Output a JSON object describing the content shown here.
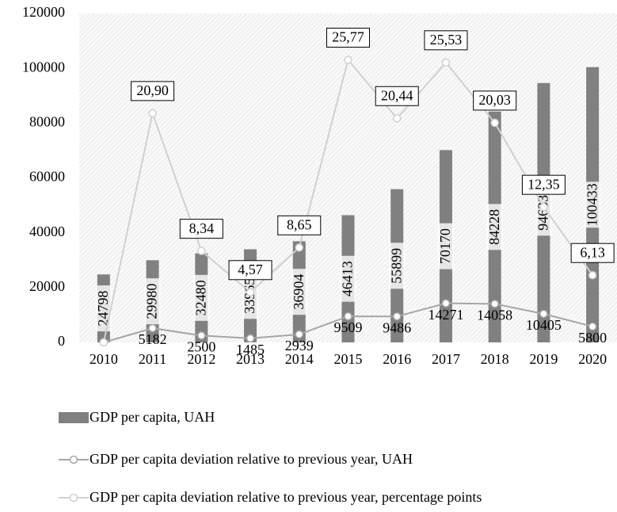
{
  "chart_data": {
    "type": "bar",
    "categories": [
      "2010",
      "2011",
      "2012",
      "2013",
      "2014",
      "2015",
      "2016",
      "2017",
      "2018",
      "2019",
      "2020"
    ],
    "series": [
      {
        "name": "GDP per capita, UAH",
        "type": "bar",
        "color": "#808080",
        "values": [
          24798,
          29980,
          32480,
          33965,
          36904,
          46413,
          55899,
          70170,
          84228,
          94633,
          100433
        ]
      },
      {
        "name": "GDP per capita deviation relative to previous year, UAH",
        "type": "line",
        "color": "#a6a6a6",
        "values": [
          0,
          5182,
          2500,
          1485,
          2939,
          9509,
          9486,
          14271,
          14058,
          10405,
          5800
        ],
        "value_labels": [
          null,
          "5182",
          "2500",
          "1485",
          "2939",
          "9509",
          "9486",
          "14271",
          "14058",
          "10405",
          "5800"
        ]
      },
      {
        "name": "GDP per capita deviation relative to previous year, percentage points",
        "type": "line",
        "axis": "y2",
        "color": "#d0d0d0",
        "values": [
          0,
          20.9,
          8.34,
          4.57,
          8.65,
          25.77,
          20.44,
          25.53,
          20.03,
          12.35,
          6.13
        ],
        "value_labels": [
          null,
          "20,90",
          "8,34",
          "4,57",
          "8,65",
          "25,77",
          "20,44",
          "25,53",
          "20,03",
          "12,35",
          "6,13"
        ]
      }
    ],
    "ylim": [
      0,
      120000
    ],
    "yticks": [
      0,
      20000,
      40000,
      60000,
      80000,
      100000,
      120000
    ],
    "y2lim": [
      0,
      30
    ],
    "grid": false,
    "legend": "bottom"
  }
}
